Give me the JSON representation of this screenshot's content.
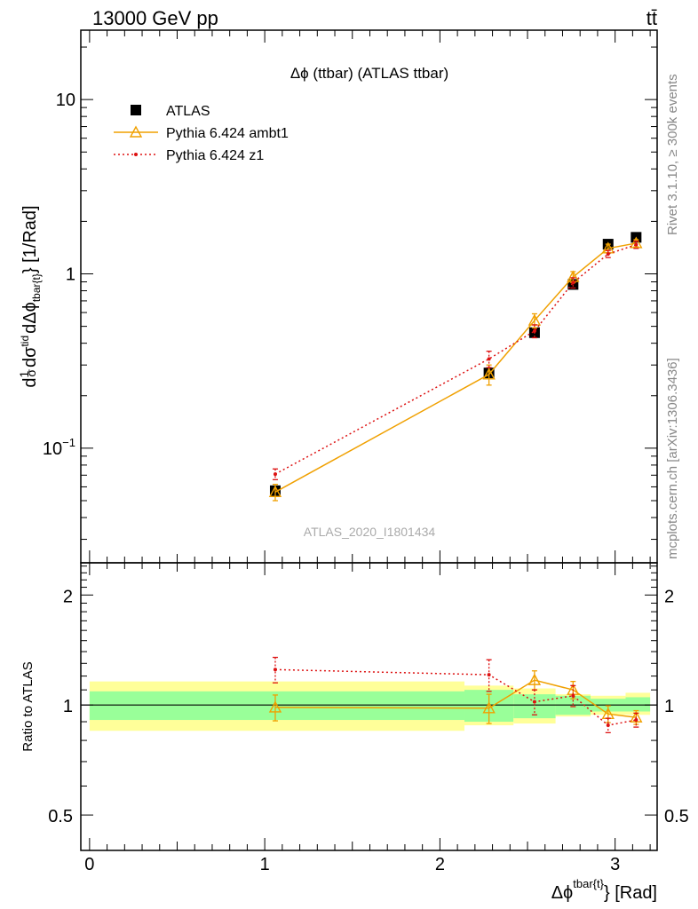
{
  "header": {
    "left": "13000 GeV pp",
    "right": "tt̄"
  },
  "side": {
    "rivet": "Rivet 3.1.10, ≥ 300k events",
    "mcplots": "mcplots.cern.ch [arXiv:1306.3436]"
  },
  "chart_data": [
    {
      "type": "scatter",
      "panel": "main",
      "title": "Δϕ (ttbar) (ATLAS ttbar)",
      "watermark": "ATLAS_2020_I1801434",
      "ylabel": "d(1/σ)dσ^{tid}/dΔϕ^{tbar{t}} [1/Rad]",
      "ylabel_parts": {
        "d": "d",
        "one": "1",
        "sigma": "σ",
        "num": "dσ",
        "sup": "tid",
        "den": "dΔϕ",
        "sub": "tbar{t}",
        "unit": "} [1/Rad]"
      },
      "yscale": "log",
      "ylim": [
        0.022,
        25
      ],
      "xlim": [
        -0.05,
        3.24
      ],
      "yticks": [
        {
          "value": 10,
          "label": "10",
          "exp": ""
        },
        {
          "value": 1,
          "label": "1",
          "exp": ""
        },
        {
          "value": 0.1,
          "label": "10",
          "exp": "−1"
        }
      ],
      "legend_position": "top-left",
      "series": [
        {
          "name": "ATLAS",
          "color": "#000000",
          "marker": "square",
          "x": [
            1.06,
            2.28,
            2.54,
            2.76,
            2.96,
            3.12
          ],
          "y": [
            0.057,
            0.27,
            0.46,
            0.87,
            1.48,
            1.62
          ]
        },
        {
          "name": "Pythia 6.424 ambt1",
          "color": "#f0a000",
          "marker": "triangle",
          "line": "solid",
          "x": [
            1.06,
            2.28,
            2.54,
            2.76,
            2.96,
            3.12
          ],
          "y": [
            0.056,
            0.265,
            0.54,
            0.96,
            1.4,
            1.5
          ],
          "err": [
            0.006,
            0.035,
            0.05,
            0.07,
            0.08,
            0.07
          ]
        },
        {
          "name": "Pythia 6.424 z1",
          "color": "#dd1111",
          "marker": "dot",
          "line": "dotted",
          "x": [
            1.06,
            2.28,
            2.54,
            2.76,
            2.96,
            3.12
          ],
          "y": [
            0.071,
            0.325,
            0.47,
            0.89,
            1.3,
            1.47
          ],
          "err": [
            0.005,
            0.035,
            0.04,
            0.06,
            0.06,
            0.07
          ]
        }
      ]
    },
    {
      "type": "scatter",
      "panel": "ratio",
      "ylabel": "Ratio to ATLAS",
      "xlabel": "Δϕ",
      "xlabel_sup": "tbar{t}",
      "xlabel_unit": "} [Rad]",
      "yscale": "log",
      "ylim": [
        0.4,
        2.45
      ],
      "xlim": [
        -0.05,
        3.24
      ],
      "xticks": [
        0,
        1,
        2,
        3
      ],
      "xtick_labels": [
        "0",
        "1",
        "2",
        "3"
      ],
      "yticks": [
        0.5,
        1,
        2
      ],
      "ytick_labels": [
        "0.5",
        "1",
        "2"
      ],
      "bands": {
        "edges": [
          0,
          2.14,
          2.42,
          2.66,
          2.86,
          3.06,
          3.2
        ],
        "green": [
          [
            0.91,
            1.09
          ],
          [
            0.9,
            1.1
          ],
          [
            0.92,
            1.07
          ],
          [
            0.94,
            1.06
          ],
          [
            0.96,
            1.04
          ],
          [
            0.96,
            1.05
          ]
        ],
        "yellow": [
          [
            0.85,
            1.16
          ],
          [
            0.88,
            1.13
          ],
          [
            0.89,
            1.11
          ],
          [
            0.93,
            1.07
          ],
          [
            0.94,
            1.06
          ],
          [
            0.94,
            1.08
          ]
        ]
      },
      "series": [
        {
          "name": "Pythia 6.424 ambt1",
          "color": "#f0a000",
          "x": [
            1.06,
            2.28,
            2.54,
            2.76,
            2.96,
            3.12
          ],
          "y": [
            0.985,
            0.98,
            1.17,
            1.1,
            0.945,
            0.925
          ],
          "err": [
            0.08,
            0.09,
            0.07,
            0.06,
            0.05,
            0.04
          ]
        },
        {
          "name": "Pythia 6.424 z1",
          "color": "#dd1111",
          "x": [
            1.06,
            2.28,
            2.54,
            2.76,
            2.96,
            3.12
          ],
          "y": [
            1.25,
            1.21,
            1.02,
            1.06,
            0.88,
            0.91
          ],
          "err": [
            0.1,
            0.12,
            0.08,
            0.07,
            0.04,
            0.04
          ]
        }
      ]
    }
  ]
}
